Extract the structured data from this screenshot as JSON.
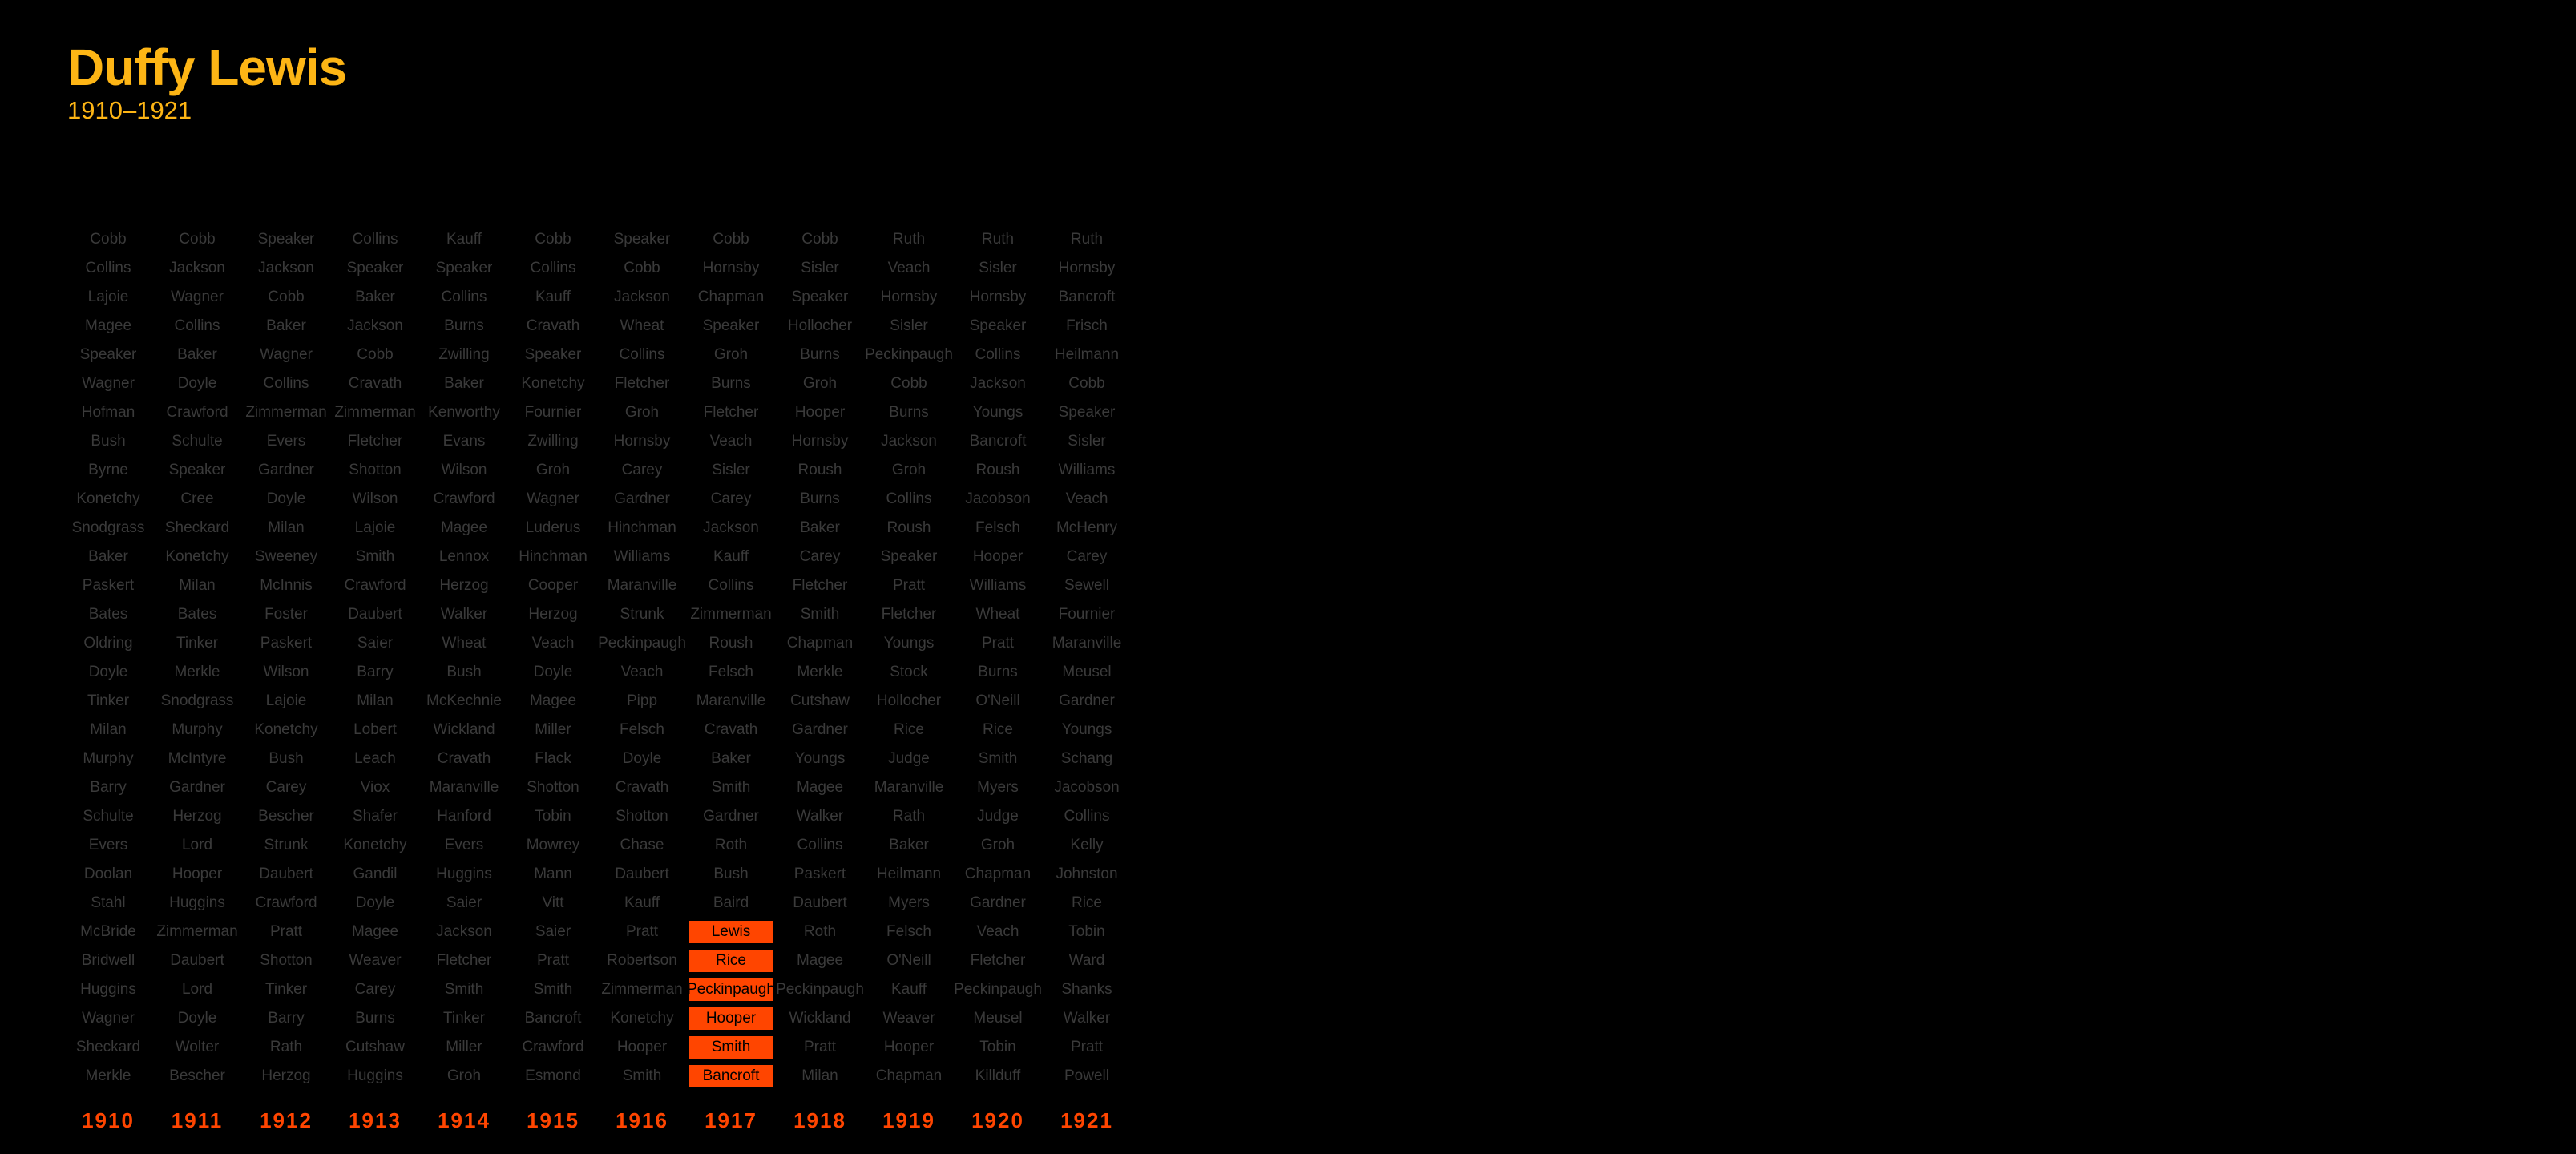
{
  "header": {
    "title": "Duffy Lewis",
    "subtitle": "1910–1921"
  },
  "colors": {
    "title": "#fdb515",
    "highlight": "#ff4500",
    "name_text": "#3a3a3a",
    "background": "#000000"
  },
  "chart_data": {
    "type": "table",
    "description_note": "Ranked player names per season; the highlighted cell in each column marks the featured player in that season.",
    "years": [
      "1910",
      "1911",
      "1912",
      "1913",
      "1914",
      "1915",
      "1916",
      "1917",
      "1918",
      "1919",
      "1920",
      "1921"
    ],
    "columns": [
      [
        "Cobb",
        "Collins",
        "Lajoie",
        "Magee",
        "Speaker",
        "Wagner",
        "Hofman",
        "Bush",
        "Byrne",
        "Konetchy",
        "Snodgrass",
        "Baker",
        "Paskert",
        "Bates",
        "Oldring",
        "Doyle",
        "Tinker",
        "Milan",
        "Murphy",
        "Barry",
        "Schulte",
        "Evers",
        "Doolan",
        "Stahl",
        "McBride",
        "Bridwell",
        "Huggins",
        "Wagner",
        "Sheckard",
        "Merkle"
      ],
      [
        "Cobb",
        "Jackson",
        "Wagner",
        "Collins",
        "Baker",
        "Doyle",
        "Crawford",
        "Schulte",
        "Speaker",
        "Cree",
        "Sheckard",
        "Konetchy",
        "Milan",
        "Bates",
        "Tinker",
        "Merkle",
        "Snodgrass",
        "Murphy",
        "McIntyre",
        "Gardner",
        "Herzog",
        "Lord",
        "Hooper",
        "Huggins",
        "Zimmerman",
        "Daubert",
        "Lord",
        "Doyle",
        "Wolter",
        "Bescher"
      ],
      [
        "Speaker",
        "Jackson",
        "Cobb",
        "Baker",
        "Wagner",
        "Collins",
        "Zimmerman",
        "Evers",
        "Gardner",
        "Doyle",
        "Milan",
        "Sweeney",
        "McInnis",
        "Foster",
        "Paskert",
        "Wilson",
        "Lajoie",
        "Konetchy",
        "Bush",
        "Carey",
        "Bescher",
        "Strunk",
        "Daubert",
        "Crawford",
        "Pratt",
        "Shotton",
        "Tinker",
        "Barry",
        "Rath",
        "Herzog"
      ],
      [
        "Collins",
        "Speaker",
        "Baker",
        "Jackson",
        "Cobb",
        "Cravath",
        "Zimmerman",
        "Fletcher",
        "Shotton",
        "Wilson",
        "Lajoie",
        "Smith",
        "Crawford",
        "Daubert",
        "Saier",
        "Barry",
        "Milan",
        "Lobert",
        "Leach",
        "Viox",
        "Shafer",
        "Konetchy",
        "Gandil",
        "Doyle",
        "Magee",
        "Weaver",
        "Carey",
        "Burns",
        "Cutshaw",
        "Huggins"
      ],
      [
        "Kauff",
        "Speaker",
        "Collins",
        "Burns",
        "Zwilling",
        "Baker",
        "Kenworthy",
        "Evans",
        "Wilson",
        "Crawford",
        "Magee",
        "Lennox",
        "Herzog",
        "Walker",
        "Wheat",
        "Bush",
        "McKechnie",
        "Wickland",
        "Cravath",
        "Maranville",
        "Hanford",
        "Evers",
        "Huggins",
        "Saier",
        "Jackson",
        "Fletcher",
        "Smith",
        "Tinker",
        "Miller",
        "Groh"
      ],
      [
        "Cobb",
        "Collins",
        "Kauff",
        "Cravath",
        "Speaker",
        "Konetchy",
        "Fournier",
        "Zwilling",
        "Groh",
        "Wagner",
        "Luderus",
        "Hinchman",
        "Cooper",
        "Herzog",
        "Veach",
        "Doyle",
        "Magee",
        "Miller",
        "Flack",
        "Shotton",
        "Tobin",
        "Mowrey",
        "Mann",
        "Vitt",
        "Saier",
        "Pratt",
        "Smith",
        "Bancroft",
        "Crawford",
        "Esmond"
      ],
      [
        "Speaker",
        "Cobb",
        "Jackson",
        "Wheat",
        "Collins",
        "Fletcher",
        "Groh",
        "Hornsby",
        "Carey",
        "Gardner",
        "Hinchman",
        "Williams",
        "Maranville",
        "Strunk",
        "Peckinpaugh",
        "Veach",
        "Pipp",
        "Felsch",
        "Doyle",
        "Cravath",
        "Shotton",
        "Chase",
        "Daubert",
        "Kauff",
        "Pratt",
        "Robertson",
        "Zimmerman",
        "Konetchy",
        "Hooper",
        "Smith"
      ],
      [
        "Cobb",
        "Hornsby",
        "Chapman",
        "Speaker",
        "Groh",
        "Burns",
        "Fletcher",
        "Veach",
        "Sisler",
        "Carey",
        "Jackson",
        "Kauff",
        "Collins",
        "Zimmerman",
        "Roush",
        "Felsch",
        "Maranville",
        "Cravath",
        "Baker",
        "Smith",
        "Gardner",
        "Roth",
        "Bush",
        "Baird",
        "Lewis",
        "Rice",
        "Peckinpaugh",
        "Hooper",
        "Smith",
        "Bancroft"
      ],
      [
        "Cobb",
        "Sisler",
        "Speaker",
        "Hollocher",
        "Burns",
        "Groh",
        "Hooper",
        "Hornsby",
        "Roush",
        "Burns",
        "Baker",
        "Carey",
        "Fletcher",
        "Smith",
        "Chapman",
        "Merkle",
        "Cutshaw",
        "Gardner",
        "Youngs",
        "Magee",
        "Walker",
        "Collins",
        "Paskert",
        "Daubert",
        "Roth",
        "Magee",
        "Peckinpaugh",
        "Wickland",
        "Pratt",
        "Milan"
      ],
      [
        "Ruth",
        "Veach",
        "Hornsby",
        "Sisler",
        "Peckinpaugh",
        "Cobb",
        "Burns",
        "Jackson",
        "Groh",
        "Collins",
        "Roush",
        "Speaker",
        "Pratt",
        "Fletcher",
        "Youngs",
        "Stock",
        "Hollocher",
        "Rice",
        "Judge",
        "Maranville",
        "Rath",
        "Baker",
        "Heilmann",
        "Myers",
        "Felsch",
        "O'Neill",
        "Kauff",
        "Weaver",
        "Hooper",
        "Chapman"
      ],
      [
        "Ruth",
        "Sisler",
        "Hornsby",
        "Speaker",
        "Collins",
        "Jackson",
        "Youngs",
        "Bancroft",
        "Roush",
        "Jacobson",
        "Felsch",
        "Hooper",
        "Williams",
        "Wheat",
        "Pratt",
        "Burns",
        "O'Neill",
        "Rice",
        "Smith",
        "Myers",
        "Judge",
        "Groh",
        "Chapman",
        "Gardner",
        "Veach",
        "Fletcher",
        "Peckinpaugh",
        "Meusel",
        "Tobin",
        "Killduff"
      ],
      [
        "Ruth",
        "Hornsby",
        "Bancroft",
        "Frisch",
        "Heilmann",
        "Cobb",
        "Speaker",
        "Sisler",
        "Williams",
        "Veach",
        "McHenry",
        "Carey",
        "Sewell",
        "Fournier",
        "Maranville",
        "Meusel",
        "Gardner",
        "Youngs",
        "Schang",
        "Jacobson",
        "Collins",
        "Kelly",
        "Johnston",
        "Rice",
        "Tobin",
        "Ward",
        "Shanks",
        "Walker",
        "Pratt",
        "Powell"
      ]
    ],
    "highlight": {
      "column": "1917",
      "rows": [
        24,
        25,
        26,
        27,
        28,
        29
      ],
      "names": [
        "Lewis",
        "Rice",
        "Peckinpaugh",
        "Hooper",
        "Smith",
        "Bancroft"
      ]
    }
  }
}
